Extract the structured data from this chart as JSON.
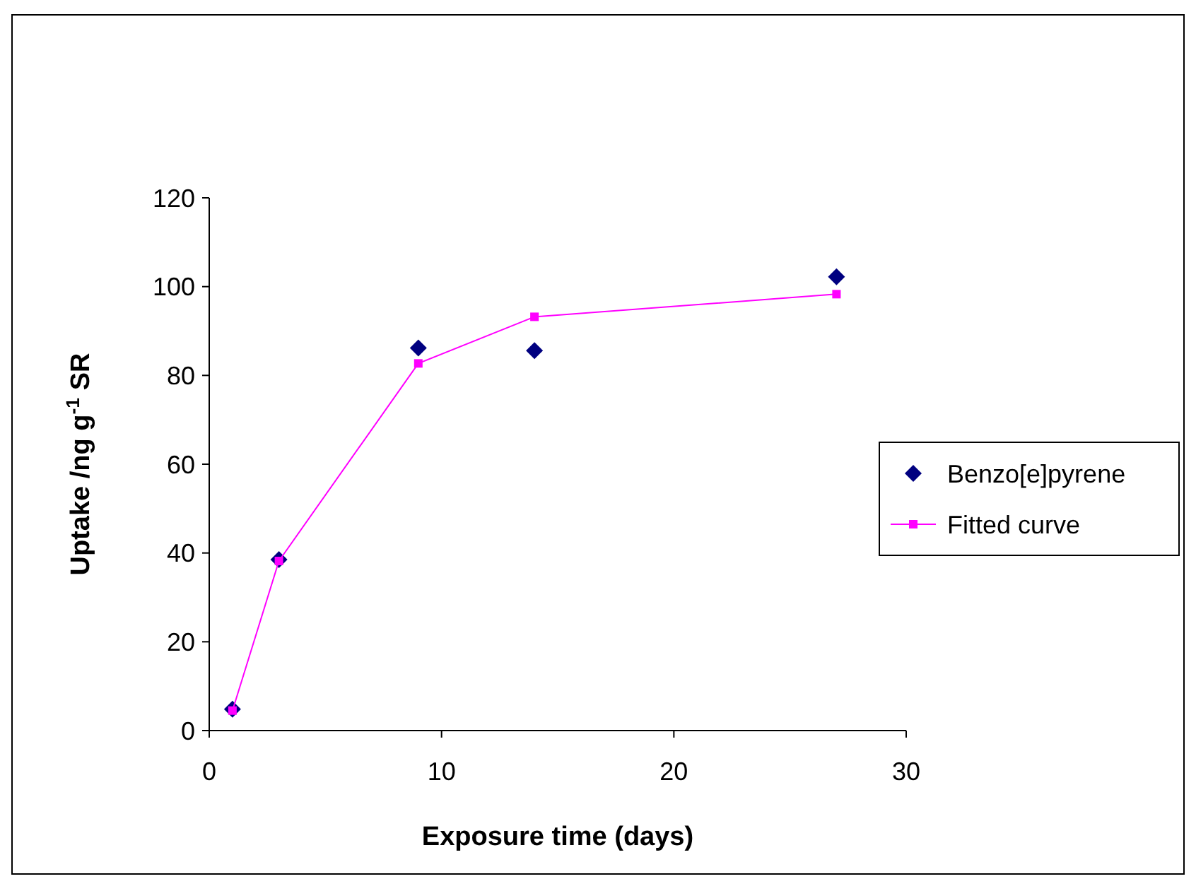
{
  "chart_data": {
    "type": "scatter",
    "xlabel": "Exposure time (days)",
    "ylabel": "Uptake /ng g$^{-1}$ SR",
    "xlim": [
      0,
      30
    ],
    "xticks": [
      0,
      10,
      20,
      30
    ],
    "ylim": [
      0,
      120
    ],
    "yticks": [
      0,
      20,
      40,
      60,
      80,
      100,
      120
    ],
    "legend": "right",
    "series": [
      {
        "name": "Benzo[e]pyrene",
        "marker": "diamond",
        "color": "#000080",
        "x": [
          1,
          3,
          9,
          14,
          27
        ],
        "values": [
          4.8,
          38.5,
          86.2,
          85.6,
          102.2
        ]
      },
      {
        "name": "Fitted curve",
        "type": "line",
        "marker": "square",
        "color": "#ff00ff",
        "x": [
          1,
          3,
          9,
          14,
          27
        ],
        "values": [
          4.5,
          38.2,
          82.7,
          93.2,
          98.3
        ]
      }
    ]
  }
}
